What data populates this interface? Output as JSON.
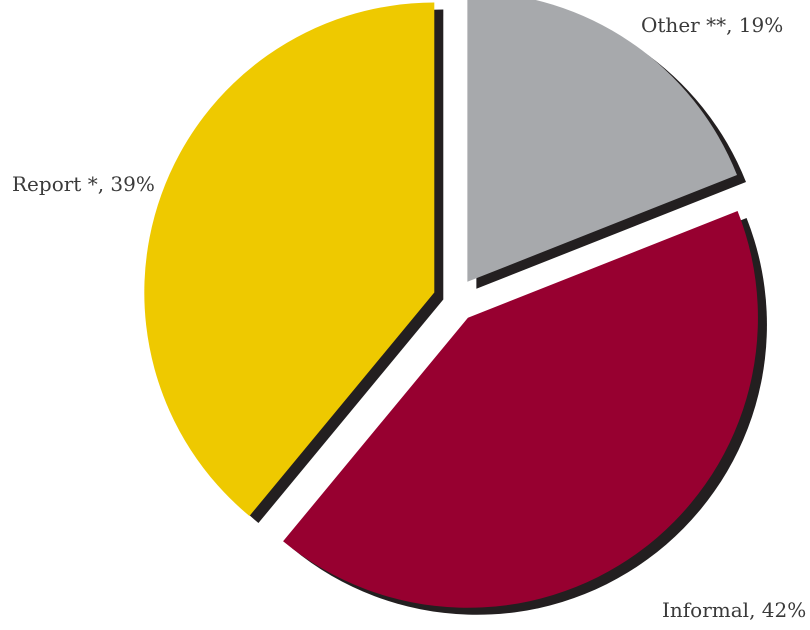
{
  "chart_data": {
    "type": "pie",
    "title": "",
    "slices": [
      {
        "label": "Other **",
        "value": 19,
        "display": "Other **, 19%",
        "color": "#a7a9ac"
      },
      {
        "label": "Informal",
        "value": 42,
        "display": "Informal, 42%",
        "color": "#970030"
      },
      {
        "label": "Report *",
        "value": 39,
        "display": "Report *, 39%",
        "color": "#eec900"
      }
    ],
    "exploded": true,
    "shadow_color": "#231f20",
    "legend": "none"
  }
}
